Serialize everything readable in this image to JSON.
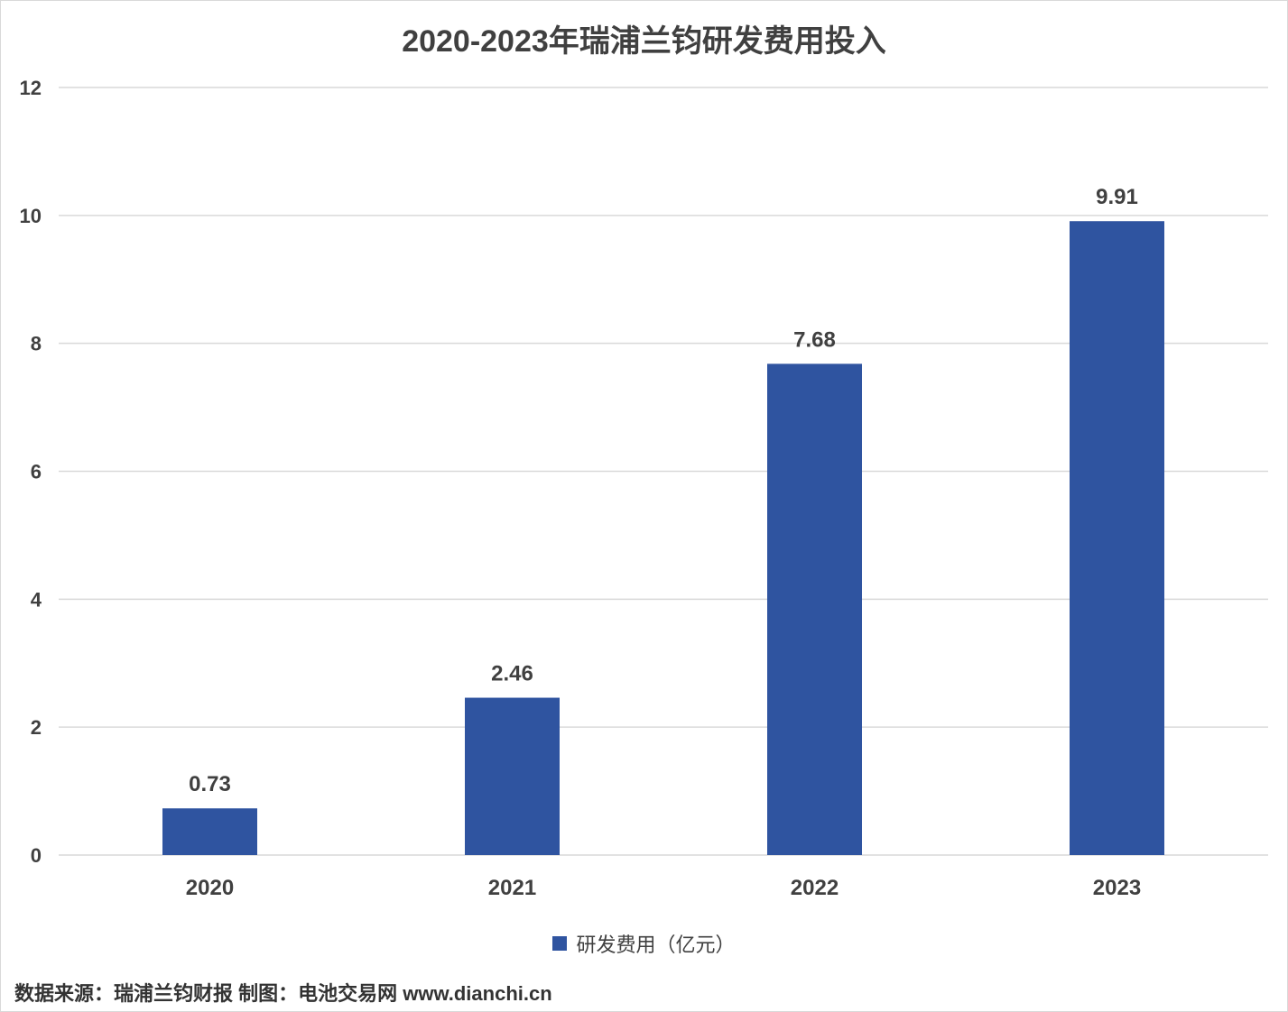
{
  "chart_data": {
    "type": "bar",
    "title": "2020-2023年瑞浦兰钧研发费用投入",
    "categories": [
      "2020",
      "2021",
      "2022",
      "2023"
    ],
    "series": [
      {
        "name": "研发费用（亿元）",
        "values": [
          0.73,
          2.46,
          7.68,
          9.91
        ],
        "color": "#2f54a0"
      }
    ],
    "data_labels": [
      "0.73",
      "2.46",
      "7.68",
      "9.91"
    ],
    "ylim": [
      0,
      12
    ],
    "yticks": [
      0,
      2,
      4,
      6,
      8,
      10,
      12
    ],
    "grid": true,
    "legend_position": "bottom",
    "xlabel": "",
    "ylabel": ""
  },
  "footer": {
    "source": "数据来源：瑞浦兰钧财报  制图：电池交易网 www.dianchi.cn"
  },
  "colors": {
    "bar": "#2f54a0",
    "grid": "#d9d9d9",
    "text": "#404040"
  }
}
